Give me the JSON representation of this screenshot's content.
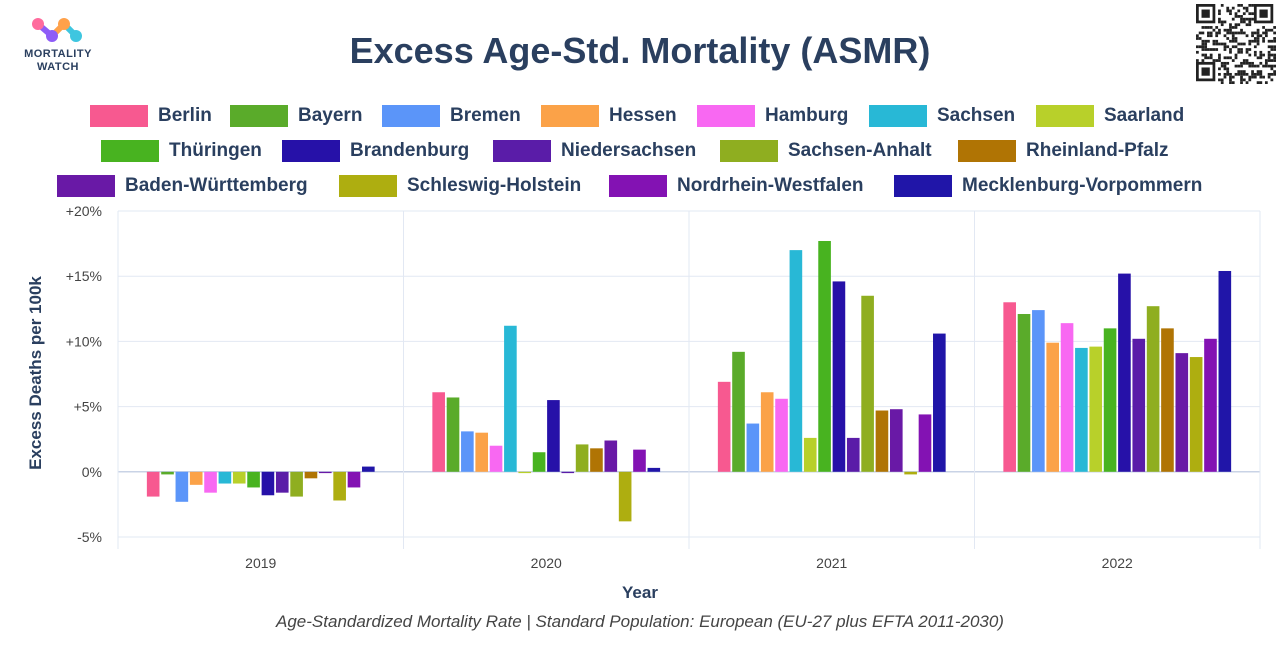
{
  "brand": {
    "line1": "MORTALITY",
    "line2": "WATCH",
    "logo_colors": [
      "#ff6b9d",
      "#ffa14a",
      "#8e5cf7",
      "#3ec6e0"
    ]
  },
  "qr_code": "qr-code",
  "chart_data": {
    "type": "bar",
    "title": "Excess Age-Std. Mortality (ASMR)",
    "xlabel": "Year",
    "ylabel": "Excess Deaths per 100k",
    "footer": "Age-Standardized Mortality Rate | Standard Population: European (EU-27 plus EFTA 2011-2030)",
    "categories": [
      "2019",
      "2020",
      "2021",
      "2022"
    ],
    "ylim": [
      -5,
      20
    ],
    "yticks": [
      -5,
      0,
      5,
      10,
      15,
      20
    ],
    "ytick_labels": [
      "-5%",
      "0%",
      "+5%",
      "+10%",
      "+15%",
      "+20%"
    ],
    "grid": true,
    "legend_position": "top",
    "series": [
      {
        "name": "Berlin",
        "color": "#f75990",
        "values": [
          -1.9,
          6.1,
          6.9,
          13.0
        ]
      },
      {
        "name": "Bayern",
        "color": "#5aab2a",
        "values": [
          -0.2,
          5.7,
          9.2,
          12.1
        ]
      },
      {
        "name": "Bremen",
        "color": "#5b95f9",
        "values": [
          -2.3,
          3.1,
          3.7,
          12.4
        ]
      },
      {
        "name": "Hessen",
        "color": "#fba248",
        "values": [
          -1.0,
          3.0,
          6.1,
          9.9
        ]
      },
      {
        "name": "Hamburg",
        "color": "#f868f2",
        "values": [
          -1.6,
          2.0,
          5.6,
          11.4
        ]
      },
      {
        "name": "Sachsen",
        "color": "#28b8d6",
        "values": [
          -0.9,
          11.2,
          17.0,
          9.5
        ]
      },
      {
        "name": "Saarland",
        "color": "#b8d02a",
        "values": [
          -0.9,
          -0.1,
          2.6,
          9.6
        ]
      },
      {
        "name": "Thüringen",
        "color": "#48b320",
        "values": [
          -1.2,
          1.5,
          17.7,
          11.0
        ]
      },
      {
        "name": "Brandenburg",
        "color": "#2611a8",
        "values": [
          -1.8,
          5.5,
          14.6,
          15.2
        ]
      },
      {
        "name": "Niedersachsen",
        "color": "#5a1ca8",
        "values": [
          -1.6,
          -0.1,
          2.6,
          10.2
        ]
      },
      {
        "name": "Sachsen-Anhalt",
        "color": "#8fae20",
        "values": [
          -1.9,
          2.1,
          13.5,
          12.7
        ]
      },
      {
        "name": "Rheinland-Pfalz",
        "color": "#b07404",
        "values": [
          -0.5,
          1.8,
          4.7,
          11.0
        ]
      },
      {
        "name": "Baden-Württemberg",
        "color": "#6919a6",
        "values": [
          -0.1,
          2.4,
          4.8,
          9.1
        ]
      },
      {
        "name": "Schleswig-Holstein",
        "color": "#aeae10",
        "values": [
          -2.2,
          -3.8,
          -0.2,
          8.8
        ]
      },
      {
        "name": "Nordrhein-Westfalen",
        "color": "#8312b3",
        "values": [
          -1.2,
          1.7,
          4.4,
          10.2
        ]
      },
      {
        "name": "Mecklenburg-Vorpommern",
        "color": "#2015a8",
        "values": [
          0.4,
          0.3,
          10.6,
          15.4
        ]
      }
    ]
  }
}
